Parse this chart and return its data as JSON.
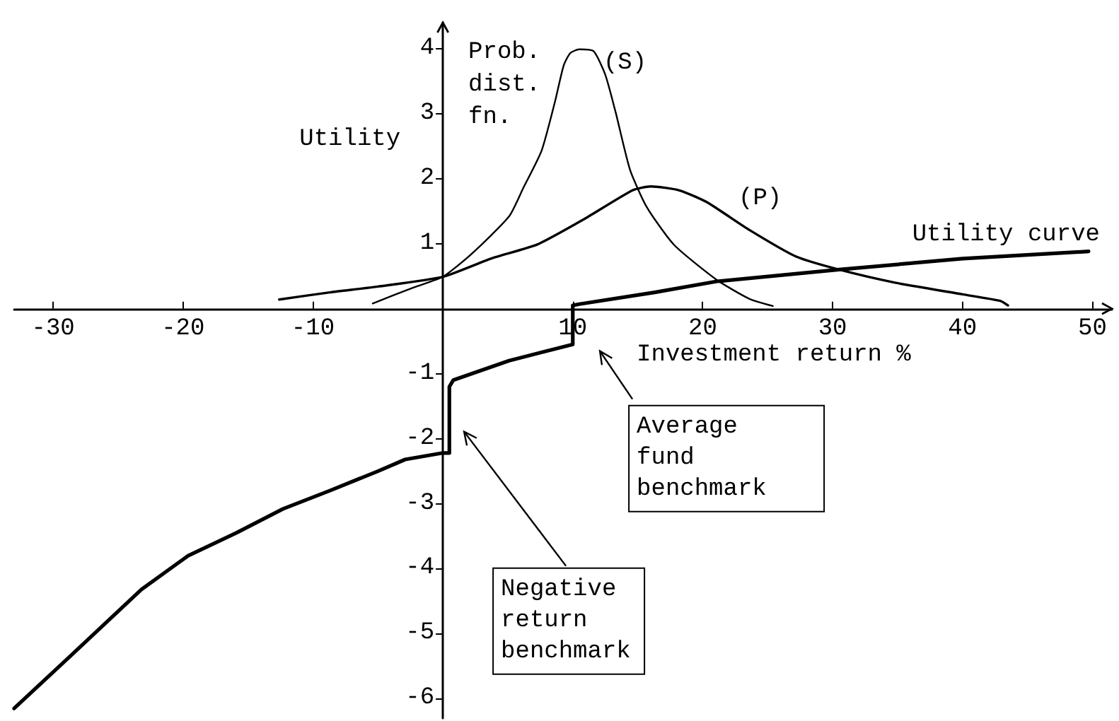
{
  "chart_data": {
    "type": "line",
    "xlabel": "Investment return %",
    "ylabel": "Utility",
    "xlim": [
      -33,
      51.5
    ],
    "ylim": [
      -6.3,
      4.4
    ],
    "xticks": [
      -30,
      -20,
      -10,
      10,
      20,
      30,
      40,
      50
    ],
    "yticks": [
      -6,
      -5,
      -4,
      -3,
      -2,
      -1,
      1,
      2,
      3,
      4
    ],
    "grid": false,
    "legend": false,
    "marker": "none",
    "series": [
      {
        "name": "Utility curve",
        "color": "#000000",
        "x": [
          -33,
          -28.6,
          -23.2,
          -19.6,
          -15.9,
          -12.3,
          -8.7,
          -5,
          -2.9,
          0,
          0.5,
          0.5,
          0.8,
          5.1,
          10,
          10,
          10.5,
          16.3,
          21.1,
          30.5,
          40,
          49.7
        ],
        "values": [
          -6.15,
          -5.33,
          -4.32,
          -3.8,
          -3.45,
          -3.08,
          -2.8,
          -2.5,
          -2.32,
          -2.22,
          -2.22,
          -1.2,
          -1.1,
          -0.8,
          -0.55,
          0.05,
          0.07,
          0.25,
          0.42,
          0.6,
          0.77,
          0.88
        ]
      },
      {
        "name": "(S)",
        "color": "#000000",
        "x": [
          -5.4,
          -2.2,
          0,
          2.2,
          5.1,
          6.2,
          7.6,
          8.6,
          9.3,
          9.8,
          10.5,
          11.6,
          12.5,
          13.3,
          14.4,
          15.7,
          17.8,
          21.1,
          23.6,
          25.4
        ],
        "values": [
          0.08,
          0.33,
          0.49,
          0.84,
          1.42,
          1.86,
          2.43,
          3.16,
          3.74,
          3.93,
          3.99,
          3.96,
          3.6,
          3.02,
          2.14,
          1.56,
          0.98,
          0.44,
          0.15,
          0.04
        ]
      },
      {
        "name": "(P)",
        "color": "#000000",
        "x": [
          -12.6,
          -8.7,
          -5,
          0,
          3.7,
          7.3,
          10.9,
          14.6,
          16,
          18.2,
          20.3,
          23.6,
          27.2,
          30.5,
          34.8,
          40,
          42.9,
          43.5
        ],
        "values": [
          0.14,
          0.25,
          0.34,
          0.49,
          0.77,
          0.99,
          1.38,
          1.82,
          1.88,
          1.82,
          1.64,
          1.21,
          0.8,
          0.6,
          0.4,
          0.22,
          0.12,
          0.05
        ]
      }
    ],
    "annotations": [
      "Prob. dist. fn.",
      "Average fund benchmark",
      "Negative return benchmark"
    ]
  }
}
